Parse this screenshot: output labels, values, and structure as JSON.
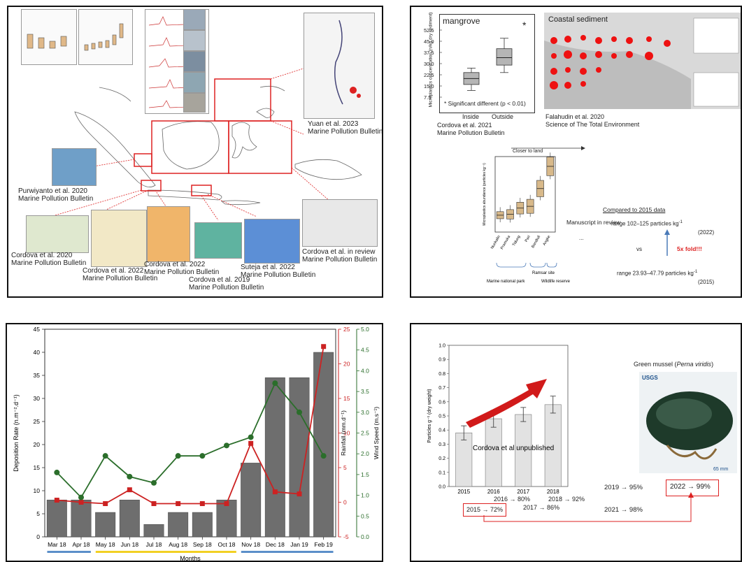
{
  "panel_map": {
    "citations": [
      {
        "id": "yuan",
        "line1": "Yuan et al. 2023",
        "line2": "Marine Pollution Bulletin"
      },
      {
        "id": "purwiyanto",
        "line1": "Purwiyanto et al. 2020",
        "line2": "Marine Pollution Bulletin"
      },
      {
        "id": "cordova2020",
        "line1": "Cordova et al. 2020",
        "line2": "Marine Pollution Bulletin"
      },
      {
        "id": "cordova2022a",
        "line1": "Cordova et al. 2022",
        "line2": "Marine Pollution Bulletin"
      },
      {
        "id": "cordova2022b",
        "line1": "Cordova et al. 2022",
        "line2": "Marine Pollution Bulletin"
      },
      {
        "id": "cordova2019",
        "line1": "Cordova et al. 2019",
        "line2": "Marine Pollution Bulletin"
      },
      {
        "id": "suteja",
        "line1": "Suteja et al. 2022",
        "line2": "Marine Pollution Bulletin"
      },
      {
        "id": "review",
        "line1": "Cordova et al. in review",
        "line2": "Marine Pollution Bulletin"
      }
    ]
  },
  "panel_mangrove": {
    "title": "mangrove",
    "ylabel": "Microplastics concentration (n/kg dry sediment)",
    "yticks": [
      "52.5",
      "45.0",
      "37.5",
      "30.0",
      "22.5",
      "15.0",
      "7.5"
    ],
    "categories": [
      "Inside",
      "Outside"
    ],
    "star": "*",
    "note": "* Significant different (p < 0.01)",
    "cite1": "Cordova et al. 2021",
    "cite2": "Marine Pollution Bulletin",
    "boxes": [
      {
        "name": "Inside",
        "min": 12,
        "q1": 16,
        "median": 20,
        "q3": 24,
        "max": 27
      },
      {
        "name": "Outside",
        "min": 24,
        "q1": 29,
        "median": 34,
        "q3": 40,
        "max": 47
      }
    ],
    "ylim": [
      7.5,
      52.5
    ]
  },
  "panel_coastal": {
    "title": "Coastal sediment",
    "cite1": "Falahudin et al. 2020",
    "cite2": "Science of The Total Environment"
  },
  "panel_national_park": {
    "arrow_label": "Closer to land",
    "ylabel": "Microplastics abundance (particles kg⁻¹)",
    "categories": [
      "Nunkalin",
      "Pramuka",
      "Tidung",
      "Pari",
      "Bandiuli",
      "Angke"
    ],
    "medians": [
      49,
      50,
      57,
      59,
      79,
      104
    ],
    "groups": [
      "Marine national park",
      "Ramsar site",
      "Wildlife reserve"
    ],
    "review_note": "Manuscript in review",
    "dots": "...",
    "compare_title": "Compared to 2015 data",
    "range_2022": "range 102–125 particles kg",
    "sup": "-1",
    "year_2022": "(2022)",
    "vs": "vs",
    "fold": "5x fold!!!",
    "range_2015": "range 23.93–47.79 particles kg",
    "year_2015": "(2015)"
  },
  "chart_data": [
    {
      "type": "bar",
      "xlabel": "Months",
      "ylabel": "Deposition Rate (n.m⁻².d⁻¹)",
      "y2label": "Rainfall (mm.d⁻¹)",
      "y3label": "Wind Speed (m.s⁻¹)",
      "categories": [
        "Mar 18",
        "Apr 18",
        "May 18",
        "Jun 18",
        "Jul 18",
        "Aug 18",
        "Sep 18",
        "Oct 18",
        "Nov 18",
        "Dec 18",
        "Jan 19",
        "Feb 19"
      ],
      "ylim": [
        0,
        45
      ],
      "y2lim": [
        -5,
        25
      ],
      "y3lim": [
        0,
        5
      ],
      "yticks": [
        "0",
        "5",
        "10",
        "15",
        "20",
        "25",
        "30",
        "35",
        "40",
        "45"
      ],
      "y2ticks": [
        "-5",
        "0",
        "5",
        "10",
        "15",
        "20",
        "25"
      ],
      "y3ticks": [
        "0.0",
        "0.5",
        "1.0",
        "1.5",
        "2.0",
        "2.5",
        "3.0",
        "3.5",
        "4.0",
        "4.5",
        "5.0"
      ],
      "series": [
        {
          "axis": "left",
          "kind": "bar",
          "color": "#6e6e6e",
          "values": [
            8,
            8,
            5.3,
            8,
            2.7,
            5.3,
            5.3,
            8,
            16,
            34.5,
            34.5,
            40
          ]
        },
        {
          "axis": "rainfall",
          "kind": "line",
          "color": "#cc2222",
          "values": [
            0.3,
            0,
            -0.2,
            1.8,
            -0.2,
            -0.2,
            -0.2,
            -0.2,
            8.5,
            1.5,
            1.2,
            22.5
          ]
        },
        {
          "axis": "wind",
          "kind": "line",
          "color": "#2b6e2b",
          "values": [
            1.55,
            0.95,
            1.95,
            1.45,
            1.3,
            1.95,
            1.95,
            2.2,
            2.4,
            3.7,
            3.0,
            1.95
          ]
        }
      ],
      "season_bars": [
        {
          "from": 0,
          "to": 1,
          "color": "#5b8fc9"
        },
        {
          "from": 2,
          "to": 7,
          "color": "#f2d024"
        },
        {
          "from": 8,
          "to": 11,
          "color": "#5b8fc9"
        }
      ]
    },
    {
      "type": "bar",
      "ylabel": "Particles g⁻¹ (dry weight)",
      "categories": [
        "2015",
        "2016",
        "2017",
        "2018"
      ],
      "values": [
        0.38,
        0.48,
        0.51,
        0.58
      ],
      "errors": [
        0.05,
        0.06,
        0.05,
        0.06
      ],
      "ylim": [
        0,
        1.0
      ],
      "yticks": [
        "0.0",
        "0.1",
        "0.2",
        "0.3",
        "0.4",
        "0.5",
        "0.6",
        "0.7",
        "0.8",
        "0.9",
        "1.0"
      ],
      "annotation": "Cordova et al unpublished"
    }
  ],
  "panel_mussel": {
    "title_prefix": "Green mussel (",
    "title_italic": "Perna viridis",
    "title_suffix": ")",
    "usgs": "USGS",
    "scale": "65 mm",
    "pct": [
      {
        "id": "p2015",
        "text": "2015 → 72%"
      },
      {
        "id": "p2016",
        "text": "2016 → 80%"
      },
      {
        "id": "p2017",
        "text": "2017 → 86%"
      },
      {
        "id": "p2018",
        "text": "2018 → 92%"
      },
      {
        "id": "p2019",
        "text": "2019 → 95%"
      },
      {
        "id": "p2021",
        "text": "2021 → 98%"
      },
      {
        "id": "p2022",
        "text": "2022 → 99%"
      }
    ]
  }
}
